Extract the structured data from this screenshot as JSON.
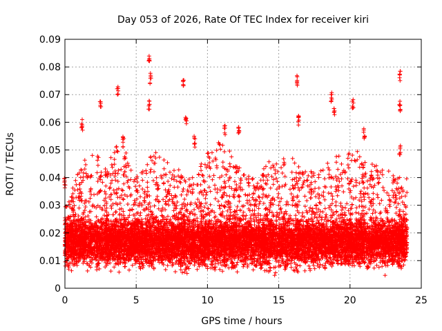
{
  "chart_data": {
    "type": "scatter",
    "title": "Day 053 of 2026, Rate Of TEC Index for receiver kiri",
    "xlabel": "GPS time / hours",
    "ylabel": "ROTI / TECUs",
    "xlim": [
      0,
      25
    ],
    "ylim": [
      0,
      0.09
    ],
    "x_ticks": [
      0,
      5,
      10,
      15,
      20,
      25
    ],
    "y_ticks": [
      0,
      0.01,
      0.02,
      0.03,
      0.04,
      0.05,
      0.06,
      0.07,
      0.08,
      0.09
    ],
    "x_tick_labels": [
      "0",
      "5",
      "10",
      "15",
      "20",
      "25"
    ],
    "y_tick_labels": [
      "0",
      "0.01",
      "0.02",
      "0.03",
      "0.04",
      "0.05",
      "0.06",
      "0.07",
      "0.08",
      "0.09"
    ],
    "grid": true,
    "marker": "+",
    "color": "#ff0000",
    "x_range_observed": [
      0,
      24
    ],
    "typical_range": [
      0.003,
      0.03
    ],
    "spikes": [
      {
        "x": 0.0,
        "y": 0.04
      },
      {
        "x": 1.2,
        "y": 0.061
      },
      {
        "x": 2.5,
        "y": 0.068
      },
      {
        "x": 3.7,
        "y": 0.074
      },
      {
        "x": 4.1,
        "y": 0.055
      },
      {
        "x": 5.9,
        "y": 0.085
      },
      {
        "x": 6.0,
        "y": 0.078
      },
      {
        "x": 5.9,
        "y": 0.068
      },
      {
        "x": 8.3,
        "y": 0.076
      },
      {
        "x": 8.5,
        "y": 0.063
      },
      {
        "x": 9.1,
        "y": 0.055
      },
      {
        "x": 11.2,
        "y": 0.059
      },
      {
        "x": 12.2,
        "y": 0.06
      },
      {
        "x": 16.3,
        "y": 0.077
      },
      {
        "x": 16.4,
        "y": 0.063
      },
      {
        "x": 18.7,
        "y": 0.071
      },
      {
        "x": 18.9,
        "y": 0.066
      },
      {
        "x": 20.2,
        "y": 0.069
      },
      {
        "x": 21.0,
        "y": 0.058
      },
      {
        "x": 23.5,
        "y": 0.079
      },
      {
        "x": 23.5,
        "y": 0.068
      },
      {
        "x": 23.5,
        "y": 0.052
      }
    ],
    "density_profile": [
      {
        "x": 0.2,
        "peak": 0.03
      },
      {
        "x": 1.0,
        "peak": 0.045
      },
      {
        "x": 2.0,
        "peak": 0.05
      },
      {
        "x": 3.0,
        "peak": 0.045
      },
      {
        "x": 3.8,
        "peak": 0.055
      },
      {
        "x": 5.0,
        "peak": 0.04
      },
      {
        "x": 6.3,
        "peak": 0.05
      },
      {
        "x": 7.5,
        "peak": 0.045
      },
      {
        "x": 9.0,
        "peak": 0.04
      },
      {
        "x": 10.5,
        "peak": 0.055
      },
      {
        "x": 11.5,
        "peak": 0.05
      },
      {
        "x": 13.0,
        "peak": 0.04
      },
      {
        "x": 14.8,
        "peak": 0.048
      },
      {
        "x": 16.0,
        "peak": 0.048
      },
      {
        "x": 17.5,
        "peak": 0.042
      },
      {
        "x": 19.0,
        "peak": 0.048
      },
      {
        "x": 20.5,
        "peak": 0.05
      },
      {
        "x": 22.0,
        "peak": 0.045
      },
      {
        "x": 23.5,
        "peak": 0.04
      }
    ]
  }
}
